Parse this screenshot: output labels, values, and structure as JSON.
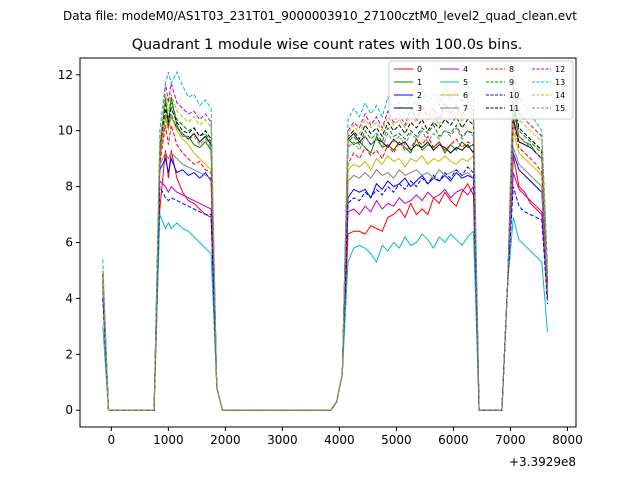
{
  "header": {
    "suptitle": "Data file: modeM0/AS1T03_231T01_9000003910_27100cztM0_level2_quad_clean.evt"
  },
  "chart_data": {
    "type": "line",
    "title": "Quadrant 1 module wise count rates with 100.0s bins.",
    "xlabel": "",
    "ylabel": "",
    "x_offset_label": "+3.3929e8",
    "xlim": [
      -550,
      8150
    ],
    "ylim": [
      -0.6,
      12.6
    ],
    "xticks": [
      0,
      1000,
      2000,
      3000,
      4000,
      5000,
      6000,
      7000,
      8000
    ],
    "yticks": [
      0,
      2,
      4,
      6,
      8,
      10,
      12
    ],
    "legend_location": "top-right",
    "x": [
      -150,
      -50,
      50,
      150,
      250,
      350,
      450,
      550,
      650,
      750,
      850,
      950,
      1000,
      1050,
      1150,
      1250,
      1350,
      1450,
      1550,
      1650,
      1750,
      1850,
      1950,
      2050,
      2150,
      2250,
      2350,
      2450,
      2550,
      2650,
      2750,
      2850,
      2950,
      3050,
      3150,
      3250,
      3350,
      3450,
      3550,
      3650,
      3750,
      3850,
      3950,
      4050,
      4150,
      4250,
      4350,
      4450,
      4550,
      4650,
      4750,
      4850,
      4950,
      5050,
      5150,
      5250,
      5350,
      5450,
      5550,
      5650,
      5750,
      5850,
      5950,
      6050,
      6150,
      6250,
      6350,
      6450,
      6550,
      6650,
      6750,
      6850,
      6950,
      7050,
      7150,
      7250,
      7350,
      7450,
      7550,
      7650
    ],
    "series": [
      {
        "name": "0",
        "color": "#ff0000",
        "dash": "solid",
        "active": [
          7.2,
          9.3,
          8.3,
          7.8,
          7.5,
          7.4,
          7.2,
          7.0,
          6.9,
          7.0
        ],
        "active2": [
          6.3,
          6.4,
          6.4,
          6.3,
          6.6,
          6.5,
          6.4,
          6.9,
          7.0,
          7.2,
          6.9,
          7.4,
          7.0,
          7.2,
          7.0,
          7.6,
          7.4,
          7.8,
          7.5,
          7.3,
          7.8,
          8.1,
          7.7,
          7.9,
          8.0
        ],
        "active3": [
          9.1,
          8.0,
          7.8,
          7.4,
          7.2,
          7.0,
          6.8
        ],
        "start": 4.5,
        "end": 4.2
      },
      {
        "name": "1",
        "color": "#008000",
        "dash": "solid",
        "active": [
          9.4,
          11.2,
          10.2,
          9.8,
          9.8,
          9.5,
          9.4,
          9.6,
          9.3,
          9.0
        ],
        "active2": [
          9.7,
          9.5,
          9.6,
          9.4,
          9.2,
          9.8,
          9.4,
          9.5,
          9.3,
          9.6,
          9.4,
          9.2,
          9.7,
          9.3,
          9.5,
          9.4,
          9.6,
          9.2,
          9.5,
          9.3,
          9.6,
          9.4,
          9.5,
          9.3,
          9.6
        ],
        "active3": [
          10.8,
          9.8,
          9.6,
          9.5,
          9.2,
          9.0,
          8.8
        ],
        "start": 4.8,
        "end": 4.6
      },
      {
        "name": "2",
        "color": "#0000ff",
        "dash": "solid",
        "active": [
          8.6,
          9.0,
          8.5,
          8.6,
          8.4,
          8.5,
          8.3,
          8.5,
          8.2,
          8.1
        ],
        "active2": [
          7.6,
          7.9,
          7.8,
          7.9,
          7.6,
          8.1,
          7.9,
          8.2,
          8.0,
          8.1,
          8.3,
          8.0,
          8.2,
          8.4,
          8.1,
          8.3,
          8.2,
          8.4,
          8.2,
          8.5,
          8.3,
          8.4,
          8.3,
          8.6,
          8.5
        ],
        "active3": [
          9.2,
          8.6,
          8.4,
          8.2,
          8.0,
          7.8,
          7.6
        ],
        "start": 4.3,
        "end": 4.0
      },
      {
        "name": "3",
        "color": "#000000",
        "dash": "solid",
        "active": [
          9.0,
          10.5,
          10.1,
          9.9,
          9.7,
          9.9,
          9.6,
          9.8,
          9.5,
          9.3
        ],
        "active2": [
          9.7,
          9.9,
          9.6,
          9.8,
          9.5,
          9.7,
          9.6,
          9.4,
          9.7,
          9.5,
          9.6,
          9.3,
          9.5,
          9.4,
          9.6,
          9.3,
          9.5,
          9.4,
          9.2,
          9.4,
          9.3,
          9.5,
          9.2,
          9.4,
          9.3
        ],
        "active3": [
          10.4,
          9.6,
          9.5,
          9.4,
          9.2,
          9.0,
          8.9
        ],
        "start": 4.6,
        "end": 4.4
      },
      {
        "name": "4",
        "color": "#bf00bf",
        "dash": "solid",
        "active": [
          8.2,
          8.0,
          7.8,
          7.7,
          7.6,
          7.5,
          7.4,
          7.3,
          7.2,
          7.1
        ],
        "active2": [
          7.1,
          7.2,
          7.0,
          7.3,
          7.1,
          7.5,
          7.2,
          7.4,
          7.3,
          7.6,
          7.4,
          7.5,
          7.7,
          7.5,
          7.8,
          7.6,
          7.7,
          7.9,
          7.6,
          7.8,
          7.9,
          7.7,
          8.0,
          7.8,
          8.1
        ],
        "active3": [
          8.5,
          7.9,
          7.7,
          7.5,
          7.3,
          7.1,
          6.9
        ],
        "start": 4.2,
        "end": 4.0
      },
      {
        "name": "5",
        "color": "#00bfbf",
        "dash": "solid",
        "active": [
          7.0,
          6.5,
          6.7,
          6.5,
          6.4,
          6.2,
          6.0,
          5.8,
          5.6,
          5.3
        ],
        "active2": [
          5.3,
          5.8,
          5.9,
          5.8,
          5.6,
          5.3,
          5.9,
          5.7,
          6.0,
          5.8,
          6.2,
          5.9,
          6.0,
          6.3,
          6.1,
          5.8,
          6.2,
          6.0,
          6.3,
          6.1,
          5.9,
          6.2,
          6.4,
          6.1,
          6.3
        ],
        "active3": [
          6.9,
          6.1,
          5.9,
          5.7,
          5.5,
          5.3,
          2.8
        ],
        "start": 3.0,
        "end": 2.8
      },
      {
        "name": "6",
        "color": "#bfbf00",
        "dash": "solid",
        "active": [
          9.0,
          10.5,
          10.0,
          9.7,
          9.5,
          9.2,
          9.0,
          8.8,
          8.6,
          8.4
        ],
        "active2": [
          8.6,
          8.8,
          8.7,
          8.9,
          8.6,
          9.0,
          8.8,
          9.1,
          8.9,
          9.0,
          8.7,
          9.0,
          8.9,
          9.1,
          8.8,
          9.0,
          8.9,
          9.1,
          8.9,
          8.8,
          9.0,
          8.9,
          9.1,
          8.9,
          9.0
        ],
        "active3": [
          10.0,
          9.2,
          9.0,
          8.8,
          8.6,
          8.4,
          8.2
        ],
        "start": 4.5,
        "end": 4.3
      },
      {
        "name": "7",
        "color": "#808080",
        "dash": "solid",
        "active": [
          8.8,
          9.2,
          9.0,
          8.8,
          8.7,
          8.6,
          8.5,
          8.4,
          8.3,
          8.2
        ],
        "active2": [
          8.2,
          8.4,
          8.3,
          8.5,
          8.3,
          8.6,
          8.4,
          8.5,
          8.3,
          8.6,
          8.4,
          8.5,
          8.6,
          8.4,
          8.5,
          8.3,
          8.6,
          8.4,
          8.5,
          8.6,
          8.4,
          8.5,
          8.3,
          8.6,
          8.4
        ],
        "active3": [
          9.4,
          8.8,
          8.6,
          8.4,
          8.2,
          8.0,
          7.8
        ],
        "start": 4.4,
        "end": 4.2
      },
      {
        "name": "8",
        "color": "#ff0000",
        "dash": "dashed",
        "active": [
          8.8,
          10.2,
          9.5,
          9.2,
          9.0,
          8.8,
          8.9,
          8.6,
          8.5,
          8.3
        ],
        "active2": [
          8.8,
          9.2,
          9.0,
          9.4,
          9.1,
          9.3,
          9.0,
          9.5,
          9.2,
          9.6,
          9.3,
          9.4,
          9.7,
          9.5,
          9.8,
          9.4,
          9.6,
          9.3,
          9.5,
          9.7,
          9.4,
          9.6,
          9.5,
          9.8,
          9.6
        ],
        "active3": [
          10.3,
          9.4,
          9.2,
          9.0,
          8.8,
          8.5,
          8.2
        ],
        "start": 4.7,
        "end": 4.5
      },
      {
        "name": "9",
        "color": "#008000",
        "dash": "dashed",
        "active": [
          9.4,
          11.0,
          10.4,
          10.2,
          10.0,
          10.1,
          9.8,
          9.9,
          9.6,
          9.4
        ],
        "active2": [
          9.6,
          9.8,
          9.5,
          10.0,
          9.7,
          9.9,
          9.6,
          10.1,
          9.8,
          9.9,
          9.7,
          10.0,
          9.8,
          10.1,
          9.9,
          10.2,
          9.8,
          10.0,
          9.9,
          10.2,
          9.8,
          10.0,
          9.9,
          10.1,
          9.8
        ],
        "active3": [
          10.9,
          10.0,
          9.8,
          9.6,
          9.4,
          9.2,
          9.0
        ],
        "start": 4.9,
        "end": 4.7
      },
      {
        "name": "10",
        "color": "#0000ff",
        "dash": "dashed",
        "active": [
          8.0,
          7.6,
          7.5,
          7.4,
          7.3,
          7.2,
          7.1,
          7.0,
          7.0,
          6.9
        ],
        "active2": [
          7.4,
          7.6,
          7.5,
          7.8,
          7.6,
          7.9,
          7.7,
          8.0,
          7.8,
          8.1,
          7.9,
          8.2,
          8.0,
          8.3,
          8.1,
          8.4,
          8.2,
          8.5,
          8.3,
          8.6,
          8.4,
          8.7,
          8.5,
          8.8,
          8.6
        ],
        "active3": [
          8.0,
          7.3,
          7.1,
          7.0,
          6.9,
          6.8,
          6.7
        ],
        "start": 4.0,
        "end": 3.8
      },
      {
        "name": "11",
        "color": "#000000",
        "dash": "dashed",
        "active": [
          9.2,
          10.8,
          10.3,
          10.0,
          9.9,
          10.1,
          9.8,
          10.0,
          9.7,
          9.5
        ],
        "active2": [
          9.8,
          10.0,
          9.7,
          10.2,
          9.9,
          10.1,
          9.8,
          10.3,
          10.0,
          10.2,
          9.9,
          10.3,
          10.1,
          10.4,
          10.0,
          10.3,
          10.1,
          10.4,
          10.2,
          10.5,
          10.1,
          10.4,
          10.2,
          10.5,
          10.3
        ],
        "active3": [
          11.0,
          10.1,
          9.9,
          9.7,
          9.5,
          9.3,
          9.1
        ],
        "start": 4.9,
        "end": 4.7
      },
      {
        "name": "12",
        "color": "#bf00bf",
        "dash": "dashed",
        "active": [
          9.0,
          11.7,
          11.0,
          10.8,
          10.6,
          10.7,
          10.4,
          10.6,
          10.3,
          10.0
        ],
        "active2": [
          10.0,
          10.3,
          10.1,
          10.6,
          10.2,
          10.5,
          10.1,
          10.7,
          10.3,
          10.6,
          10.2,
          10.8,
          10.4,
          10.9,
          10.5,
          10.8,
          10.4,
          11.0,
          10.6,
          10.9,
          10.5,
          11.0,
          10.7,
          10.9,
          10.6
        ],
        "active3": [
          11.6,
          10.6,
          10.4,
          10.2,
          10.0,
          9.8,
          9.6
        ],
        "start": 5.0,
        "end": 4.8
      },
      {
        "name": "13",
        "color": "#00bfbf",
        "dash": "dashed",
        "active": [
          10.0,
          11.7,
          12.1,
          11.6,
          11.2,
          11.3,
          10.9,
          11.1,
          10.8,
          10.6
        ],
        "active2": [
          10.4,
          10.8,
          10.5,
          11.0,
          10.6,
          10.9,
          10.5,
          11.2,
          10.8,
          11.0,
          10.6,
          11.3,
          10.9,
          11.5,
          11.0,
          11.3,
          10.9,
          11.6,
          11.1,
          11.4,
          11.0,
          11.6,
          11.2,
          11.5,
          11.1
        ],
        "active3": [
          12.0,
          11.2,
          10.9,
          10.6,
          10.3,
          10.0,
          9.8
        ],
        "start": 5.4,
        "end": 5.2
      },
      {
        "name": "14",
        "color": "#bfbf00",
        "dash": "dashed",
        "active": [
          9.6,
          11.3,
          10.7,
          10.5,
          10.3,
          10.5,
          10.2,
          10.4,
          10.1,
          9.8
        ],
        "active2": [
          9.9,
          10.2,
          9.9,
          10.4,
          10.1,
          10.3,
          10.0,
          10.5,
          10.2,
          10.4,
          10.1,
          10.6,
          10.3,
          10.7,
          10.4,
          10.6,
          10.2,
          10.8,
          10.4,
          10.7,
          10.3,
          10.8,
          10.5,
          10.7,
          10.4
        ],
        "active3": [
          11.3,
          10.4,
          10.2,
          10.0,
          9.8,
          9.6,
          9.4
        ],
        "start": 5.0,
        "end": 4.8
      },
      {
        "name": "15",
        "color": "#808080",
        "dash": "dashed",
        "active": [
          9.2,
          10.6,
          10.1,
          9.9,
          9.7,
          9.8,
          9.5,
          9.7,
          9.4,
          9.2
        ],
        "active2": [
          9.4,
          9.6,
          9.3,
          9.8,
          9.5,
          9.7,
          9.4,
          9.9,
          9.6,
          9.8,
          9.5,
          9.9,
          9.7,
          10.0,
          9.6,
          9.9,
          9.7,
          10.0,
          9.8,
          10.1,
          9.7,
          10.0,
          9.8,
          10.1,
          9.9
        ],
        "active3": [
          10.6,
          9.8,
          9.6,
          9.4,
          9.2,
          9.0,
          8.8
        ],
        "start": 4.7,
        "end": 4.5
      }
    ]
  }
}
